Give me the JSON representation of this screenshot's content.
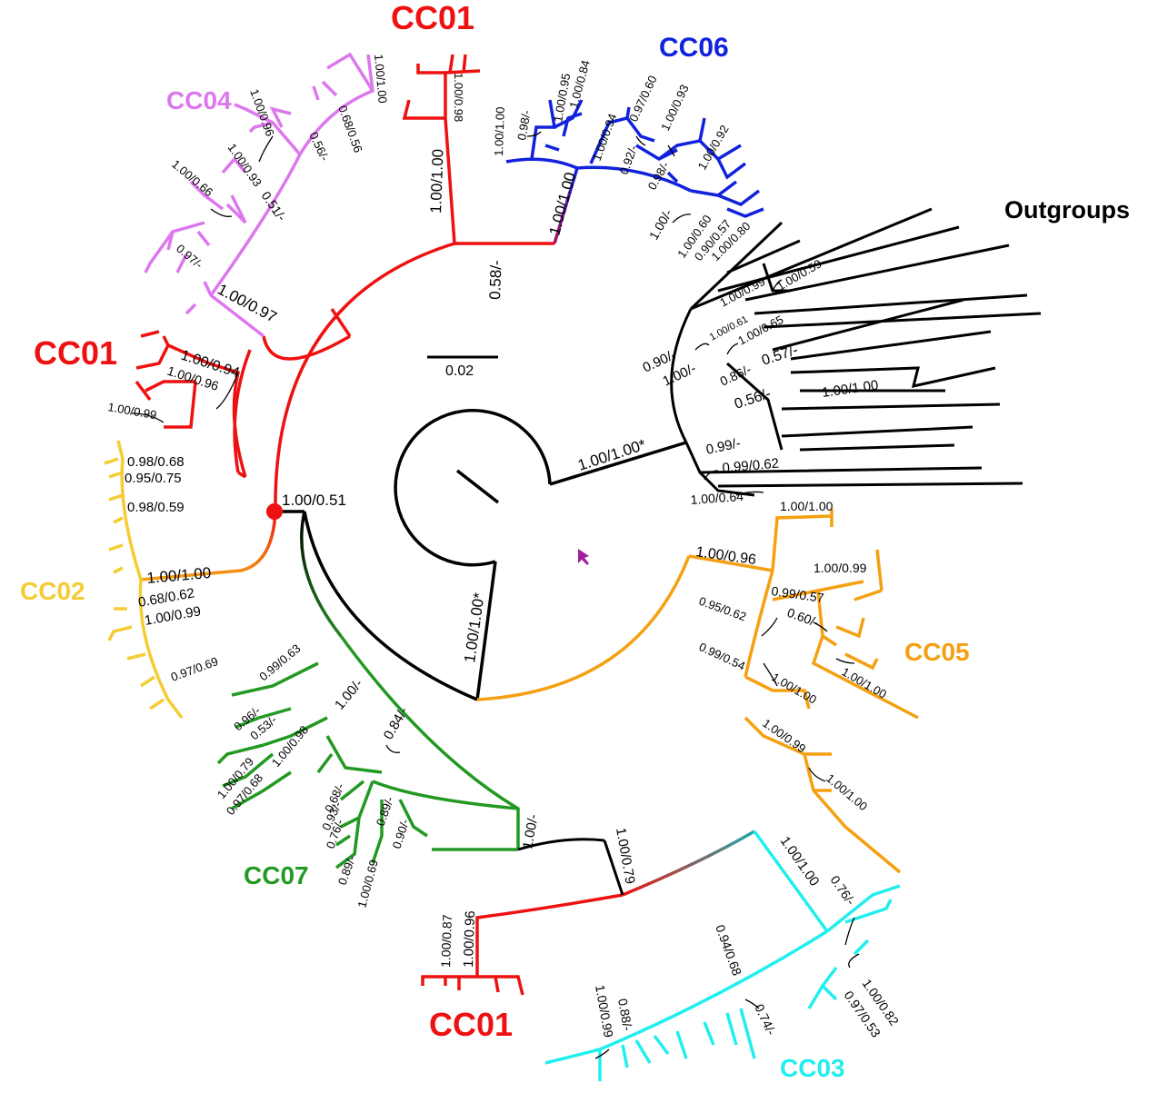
{
  "colors": {
    "CC01": "#ee1111",
    "CC02": "#f5cc33",
    "CC03": "#22eeee",
    "CC04": "#dd77ee",
    "CC05": "#f5a011",
    "CC06": "#1122dd",
    "CC07": "#229922",
    "outgroup": "#000000",
    "marker": "#ee1111"
  },
  "clade_labels": {
    "cc01_top": "CC01",
    "cc06": "CC06",
    "outgroups": "Outgroups",
    "cc04": "CC04",
    "cc01_left": "CC01",
    "cc02": "CC02",
    "cc05": "CC05",
    "cc07": "CC07",
    "cc01_bottom": "CC01",
    "cc03": "CC03"
  },
  "scale_bar": {
    "label": "0.02"
  },
  "support": {
    "root_outgroup": "1.00/1.00*",
    "root_ingroup": "1.00/1.00*",
    "main_node": "1.00/0.51",
    "cc01_top_stem": "1.00/1.00",
    "cc01_top_a": "1.00/0.98",
    "cc06_stem": "1.00/1.00",
    "cc06_node": "0.58/-",
    "cc06_a": "1.00/1.00",
    "cc06_b": "0.98/-",
    "cc06_c": "1.00/0.95",
    "cc06_d": "1.00/0.84",
    "cc06_e": "1.00/0.94",
    "cc06_f": "0.92/-",
    "cc06_g": "0.97/0.60",
    "cc06_h": "1.00/0.93",
    "cc06_i": "1.00/0.92",
    "cc06_j": "0.98/-",
    "cc06_k": "1.00/-",
    "cc06_l": "1.00/0.60",
    "cc06_m": "0.90/0.57",
    "cc06_n": "1.00/0.80",
    "cc04_stem": "1.00/0.97",
    "cc04_a": "1.00/1.00",
    "cc04_b": "1.00/0.96",
    "cc04_c": "0.68/0.56",
    "cc04_d": "0.56/-",
    "cc04_e": "1.00/0.93",
    "cc04_f": "1.00/0.66",
    "cc04_g": "0.51/-",
    "cc04_h": "0.97/-",
    "cc01_left_a": "1.00/0.94",
    "cc01_left_b": "1.00/0.96",
    "cc01_left_c": "1.00/0.99",
    "cc02_stem": "1.00/1.00",
    "cc02_a": "0.98/0.68",
    "cc02_b": "0.95/0.75",
    "cc02_c": "0.98/0.59",
    "cc02_d": "0.68/0.62",
    "cc02_e": "1.00/0.99",
    "cc02_f": "0.97/0.69",
    "og_a": "1.00/0.59",
    "og_b": "1.00/0.99",
    "og_c": "1.00/0.61",
    "og_d": "1.00/0.65",
    "og_e": "0.90/-",
    "og_f": "1.00/-",
    "og_g": "0.86/-",
    "og_h": "0.57/-",
    "og_i": "0.56/-",
    "og_j": "1.00/1.00",
    "og_k": "0.99/-",
    "og_l": "0.99/0.62",
    "og_m": "1.00/0.64",
    "cc05_a": "1.00/1.00",
    "cc05_stem": "1.00/0.96",
    "cc05_b": "1.00/0.99",
    "cc05_c": "0.99/0.57",
    "cc05_d": "0.95/0.62",
    "cc05_e": "0.60/-",
    "cc05_f": "0.99/0.54",
    "cc05_g": "1.00/1.00",
    "cc05_h": "1.00/1.00",
    "cc05_i": "1.00/0.99",
    "cc05_j": "1.00/1.00",
    "cc07_a": "0.99/0.63",
    "cc07_b": "1.00/-",
    "cc07_c": "0.96/-",
    "cc07_d": "0.53/-",
    "cc07_e": "1.00/0.98",
    "cc07_f": "0.84/-",
    "cc07_g": "1.00/0.79",
    "cc07_h": "0.97/0.68",
    "cc07_i": "0.68/-",
    "cc07_j": "0.93/-",
    "cc07_k": "0.76/-",
    "cc07_l": "0.89/-",
    "cc07_m": "0.89/-",
    "cc07_n": "0.90/-",
    "cc07_o": "1.00/0.69",
    "cc07_stem": "1.00/-",
    "cc01_bottom_stem": "1.00/0.79",
    "cc01_bottom_a": "1.00/0.87",
    "cc01_bottom_b": "1.00/0.96",
    "cc03_stem": "1.00/1.00",
    "cc03_a": "0.76/-",
    "cc03_b": "0.94/0.68",
    "cc03_c": "0.74/-",
    "cc03_d": "1.00/0.82",
    "cc03_e": "0.97/0.53",
    "cc03_f": "0.88/-",
    "cc03_g": "1.00/0.99"
  }
}
